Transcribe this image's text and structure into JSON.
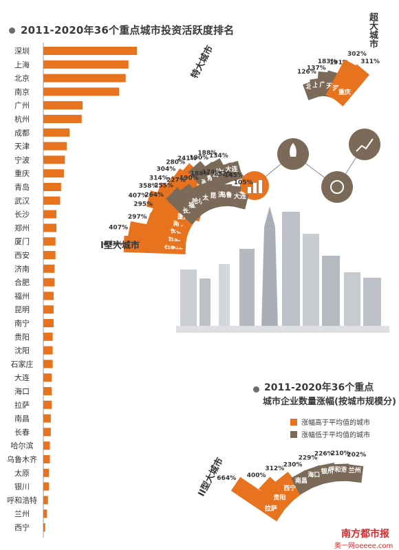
{
  "title_main": "2011-2020年36个重点城市投资活跃度排名",
  "title_second": [
    "2011-2020年36个重点",
    "城市企业数量涨幅(按城市规模分)"
  ],
  "legend": [
    {
      "label": "涨幅高于平均值的城市",
      "color": "#e8731f"
    },
    {
      "label": "涨幅低于平均值的城市",
      "color": "#7b6a58"
    }
  ],
  "colors": {
    "above": "#e8731f",
    "below": "#7b6a58",
    "bar": "#e8731f"
  },
  "brand": {
    "name": "南方都市报",
    "site": "奥一网oeeee.com"
  },
  "chart_data": [
    {
      "type": "bar",
      "title": "2011-2020年36个重点城市投资活跃度排名",
      "orientation": "horizontal",
      "categories": [
        "深圳",
        "上海",
        "北京",
        "南京",
        "广州",
        "杭州",
        "成都",
        "天津",
        "宁波",
        "重庆",
        "青岛",
        "武汉",
        "长沙",
        "郑州",
        "厦门",
        "西安",
        "济南",
        "合肥",
        "福州",
        "昆明",
        "南宁",
        "贵阳",
        "沈阳",
        "石家庄",
        "大连",
        "海口",
        "拉萨",
        "南昌",
        "长春",
        "哈尔滨",
        "乌鲁木齐",
        "太原",
        "银川",
        "呼和浩特",
        "兰州",
        "西宁"
      ],
      "values": [
        100,
        91,
        88,
        81,
        42,
        41,
        28,
        25,
        23,
        22,
        19,
        18,
        14,
        14,
        13,
        13,
        12,
        12,
        11,
        11,
        11,
        10,
        10,
        10,
        9,
        9,
        9,
        8,
        8,
        7,
        7,
        6,
        6,
        5,
        4,
        2
      ]
    },
    {
      "type": "bar",
      "group": "超大城市",
      "categories": [
        "北京",
        "上海",
        "广州",
        "天津",
        "深圳",
        "重庆"
      ],
      "values": [
        126,
        137,
        183,
        191,
        302,
        311
      ],
      "labels": [
        "126%",
        "137%",
        "183%",
        "191%",
        "302%",
        "311%"
      ],
      "status": [
        "below",
        "below",
        "below",
        "below",
        "above",
        "above"
      ]
    },
    {
      "type": "bar",
      "group": "特大城市",
      "categories": [
        "成都",
        "西安",
        "武汉",
        "杭州",
        "郑州",
        "南京",
        "青岛",
        "沈阳",
        "哈尔滨",
        "大连"
      ],
      "values": [
        407,
        358,
        314,
        304,
        280,
        241,
        190,
        188,
        134,
        134
      ],
      "labels": [
        "407%",
        "358%",
        "314%",
        "304%",
        "280%",
        "241%",
        "190%",
        "188%",
        "134%",
        ""
      ],
      "status": [
        "above",
        "above",
        "above",
        "above",
        "above",
        "below",
        "below",
        "below",
        "below",
        "below"
      ]
    },
    {
      "type": "bar",
      "group": "I型大城市",
      "categories": [
        "石家庄",
        "合肥",
        "长春",
        "南宁",
        "厦门",
        "长沙",
        "福州",
        "哈尔滨",
        "太原",
        "昆明",
        "济南",
        "乌鲁木齐",
        "大连"
      ],
      "values": [
        433,
        407,
        297,
        295,
        264,
        255,
        227,
        190,
        188,
        174,
        152,
        145,
        105
      ],
      "labels": [
        "433%",
        "407%",
        "297%",
        "295%",
        "264%",
        "255%",
        "227%",
        "190%",
        "188%",
        "174%",
        "152%",
        "145%",
        "105%"
      ],
      "status": [
        "above",
        "above",
        "above",
        "above",
        "above",
        "below",
        "below",
        "below",
        "below",
        "below",
        "below",
        "below",
        "below"
      ]
    },
    {
      "type": "bar",
      "group": "II型大城市",
      "categories": [
        "拉萨",
        "贵阳",
        "西宁",
        "南昌",
        "海口",
        "银川",
        "呼和浩特",
        "兰州"
      ],
      "values": [
        664,
        400,
        312,
        230,
        229,
        226,
        210,
        202
      ],
      "labels": [
        "664%",
        "400%",
        "312%",
        "230%",
        "229%",
        "226%",
        "210%",
        "202%"
      ],
      "status": [
        "above",
        "above",
        "above",
        "below",
        "below",
        "below",
        "below",
        "below"
      ]
    }
  ]
}
